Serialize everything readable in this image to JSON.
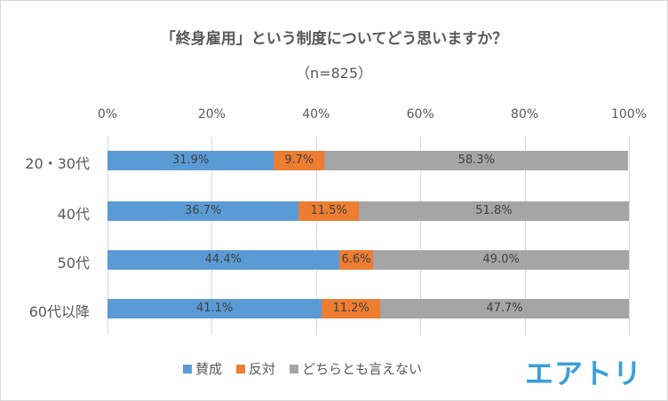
{
  "chart_data": {
    "type": "bar",
    "orientation": "horizontal",
    "stacked": true,
    "title": "「終身雇用」という制度についてどう思いますか？",
    "subtitle": "（n=825）",
    "categories": [
      "20・30代",
      "40代",
      "50代",
      "60代以降"
    ],
    "series": [
      {
        "name": "賛成",
        "color": "#5b9bd5",
        "values": [
          31.9,
          36.7,
          44.4,
          41.1
        ]
      },
      {
        "name": "反対",
        "color": "#ed7d31",
        "values": [
          9.7,
          11.5,
          6.6,
          11.2
        ]
      },
      {
        "name": "どちらとも言えない",
        "color": "#a5a5a5",
        "values": [
          58.3,
          51.8,
          49.0,
          47.7
        ]
      }
    ],
    "xticks": [
      "0%",
      "20%",
      "40%",
      "60%",
      "80%",
      "100%"
    ],
    "xlim": [
      0,
      100
    ],
    "grid": true,
    "legend": "bottom"
  },
  "logo": "エアトリ"
}
